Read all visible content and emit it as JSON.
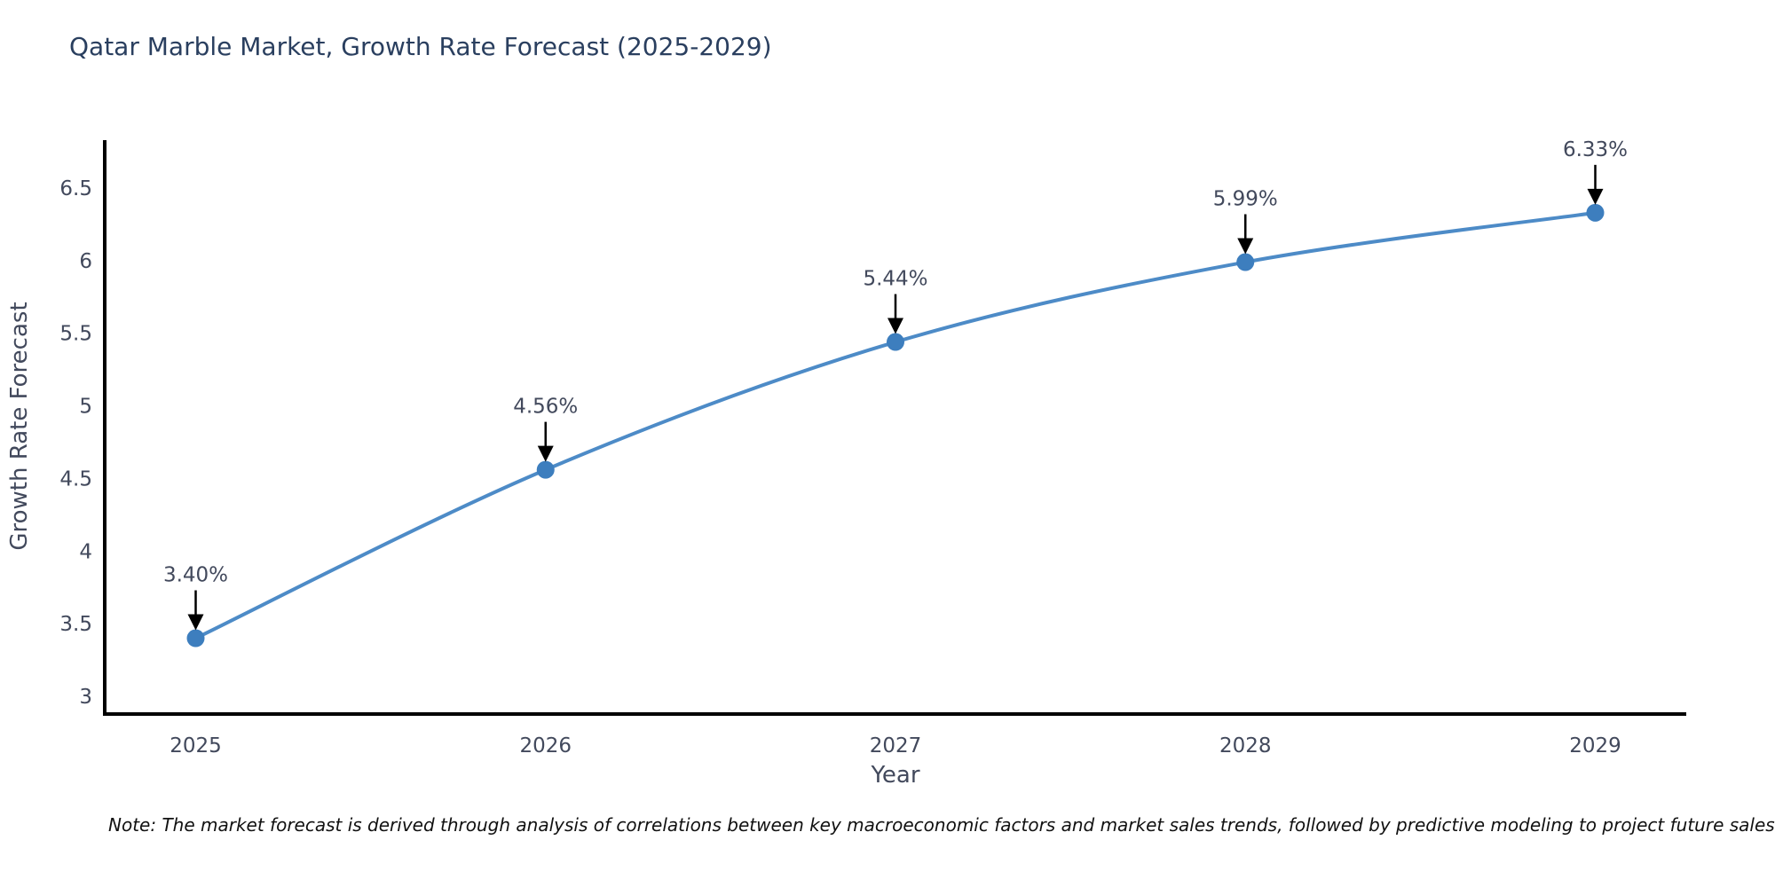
{
  "title": "Qatar Marble Market, Growth Rate Forecast (2025-2029)",
  "note": "Note: The market forecast is derived through analysis of correlations between key macroeconomic factors and market sales trends, followed by predictive modeling to project future sales",
  "chart_data": {
    "type": "line",
    "title": "Qatar Marble Market, Growth Rate Forecast (2025-2029)",
    "x": [
      2025,
      2026,
      2027,
      2028,
      2029
    ],
    "values": [
      3.4,
      4.56,
      5.44,
      5.99,
      6.33
    ],
    "point_labels": [
      "3.40%",
      "4.56%",
      "5.44%",
      "5.99%",
      "6.33%"
    ],
    "xlabel": "Year",
    "ylabel": "Growth Rate Forecast",
    "xticks": [
      "2025",
      "2026",
      "2027",
      "2028",
      "2029"
    ],
    "yticks": [
      3,
      3.5,
      4,
      4.5,
      5,
      5.5,
      6,
      6.5
    ],
    "ytick_labels": [
      "3",
      "3.5",
      "4",
      "4.5",
      "5",
      "5.5",
      "6",
      "6.5"
    ],
    "xlim": [
      2024.74,
      2029.26
    ],
    "ylim": [
      2.89,
      6.83
    ],
    "grid": false,
    "legend_position": "none",
    "line_shape": "spline",
    "annotation_style": "down-arrow",
    "colors": {
      "line": "#4d8bc7",
      "marker": "#3d7ebe",
      "title_text": "#2a3f5f",
      "axis_line": "#000000",
      "tick_label": "#42495c",
      "axis_title": "#42495c",
      "annotation_text": "#42495c",
      "annotation_arrow": "#000000",
      "note_text": "#111111",
      "background": "#ffffff"
    }
  }
}
